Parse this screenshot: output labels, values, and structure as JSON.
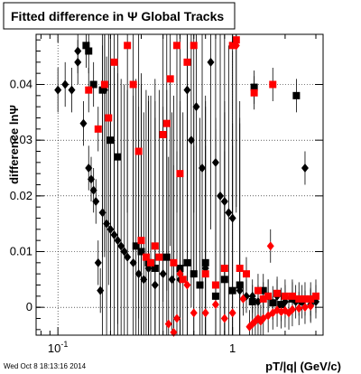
{
  "chart_data": {
    "type": "scatter",
    "title": "Fitted difference in Ψ  Global Tracks",
    "xlabel": "pT/|q| (GeV/c)",
    "ylabel": "difference lnΨ",
    "xscale": "log",
    "xlim": [
      0.075,
      3.3
    ],
    "ylim": [
      -0.005,
      0.049
    ],
    "grid": true,
    "x_ticks": [
      {
        "label": "10",
        "sup": "-1",
        "value": 0.1
      },
      {
        "label": "1",
        "sup": "",
        "value": 1
      }
    ],
    "y_ticks": [
      {
        "label": "0",
        "value": 0
      },
      {
        "label": "0.01",
        "value": 0.01
      },
      {
        "label": "0.02",
        "value": 0.02
      },
      {
        "label": "0.03",
        "value": 0.03
      },
      {
        "label": "0.04",
        "value": 0.04
      }
    ],
    "timestamp": "Wed Oct  8 18:13:16 2014",
    "series": [
      {
        "marker": "diamond",
        "color": "#000000",
        "points": [
          {
            "x": 0.1,
            "y": 0.039
          },
          {
            "x": 0.11,
            "y": 0.04
          },
          {
            "x": 0.12,
            "y": 0.039
          },
          {
            "x": 0.13,
            "y": 0.046
          },
          {
            "x": 0.13,
            "y": 0.044
          },
          {
            "x": 0.14,
            "y": 0.033
          },
          {
            "x": 0.15,
            "y": 0.025
          },
          {
            "x": 0.155,
            "y": 0.023
          },
          {
            "x": 0.16,
            "y": 0.021
          },
          {
            "x": 0.165,
            "y": 0.019
          },
          {
            "x": 0.17,
            "y": 0.008
          },
          {
            "x": 0.175,
            "y": 0.003
          },
          {
            "x": 0.18,
            "y": 0.017
          },
          {
            "x": 0.185,
            "y": 0.039
          },
          {
            "x": 0.19,
            "y": 0.015
          },
          {
            "x": 0.2,
            "y": 0.014
          },
          {
            "x": 0.21,
            "y": 0.013
          },
          {
            "x": 0.22,
            "y": 0.012
          },
          {
            "x": 0.23,
            "y": 0.011
          },
          {
            "x": 0.24,
            "y": 0.01
          },
          {
            "x": 0.25,
            "y": 0.009
          },
          {
            "x": 0.27,
            "y": 0.008
          },
          {
            "x": 0.29,
            "y": 0.006
          },
          {
            "x": 0.31,
            "y": 0.005
          },
          {
            "x": 0.33,
            "y": 0.007
          },
          {
            "x": 0.36,
            "y": 0.004
          },
          {
            "x": 0.4,
            "y": 0.006
          },
          {
            "x": 0.45,
            "y": 0.005
          },
          {
            "x": 0.5,
            "y": 0.005
          },
          {
            "x": 0.55,
            "y": 0.039
          },
          {
            "x": 0.58,
            "y": 0.03
          },
          {
            "x": 0.62,
            "y": 0.036
          },
          {
            "x": 0.67,
            "y": 0.025
          },
          {
            "x": 0.7,
            "y": 0.007
          },
          {
            "x": 0.75,
            "y": 0.044
          },
          {
            "x": 0.8,
            "y": 0.026
          },
          {
            "x": 0.85,
            "y": 0.02
          },
          {
            "x": 0.9,
            "y": 0.019
          },
          {
            "x": 0.95,
            "y": 0.017
          },
          {
            "x": 1.0,
            "y": 0.016
          },
          {
            "x": 1.1,
            "y": 0.003
          },
          {
            "x": 1.2,
            "y": 0.002
          },
          {
            "x": 1.3,
            "y": 0.002
          },
          {
            "x": 1.4,
            "y": 0.001
          },
          {
            "x": 1.6,
            "y": 0.002
          },
          {
            "x": 1.8,
            "y": 0.002
          },
          {
            "x": 2.0,
            "y": 0.001
          },
          {
            "x": 2.3,
            "y": 0.001
          },
          {
            "x": 2.6,
            "y": 0.025
          },
          {
            "x": 2.8,
            "y": 0.0005
          },
          {
            "x": 3.0,
            "y": 0.001
          }
        ]
      },
      {
        "marker": "square",
        "color": "#000000",
        "points": [
          {
            "x": 0.145,
            "y": 0.047
          },
          {
            "x": 0.15,
            "y": 0.046
          },
          {
            "x": 0.16,
            "y": 0.04
          },
          {
            "x": 0.18,
            "y": 0.039
          },
          {
            "x": 0.2,
            "y": 0.03
          },
          {
            "x": 0.22,
            "y": 0.027
          },
          {
            "x": 0.3,
            "y": 0.01
          },
          {
            "x": 0.33,
            "y": 0.008
          },
          {
            "x": 0.36,
            "y": 0.007
          },
          {
            "x": 0.42,
            "y": 0.009
          },
          {
            "x": 0.5,
            "y": 0.007
          },
          {
            "x": 0.55,
            "y": 0.008
          },
          {
            "x": 0.6,
            "y": 0.006
          },
          {
            "x": 0.65,
            "y": 0.004
          },
          {
            "x": 0.7,
            "y": 0.008
          },
          {
            "x": 0.8,
            "y": 0.002
          },
          {
            "x": 0.9,
            "y": 0.005
          },
          {
            "x": 1.0,
            "y": 0.003
          },
          {
            "x": 1.1,
            "y": 0.004
          },
          {
            "x": 1.3,
            "y": 0.001
          },
          {
            "x": 1.5,
            "y": 0.003
          },
          {
            "x": 1.7,
            "y": 0.0008
          },
          {
            "x": 1.9,
            "y": 0.0005
          },
          {
            "x": 2.2,
            "y": 0.0015
          },
          {
            "x": 2.5,
            "y": 0.001
          },
          {
            "x": 1.33,
            "y": 0.0395
          },
          {
            "x": 2.32,
            "y": 0.038
          },
          {
            "x": 0.28,
            "y": 0.011
          }
        ]
      },
      {
        "marker": "square",
        "color": "#ff0000",
        "points": [
          {
            "x": 0.15,
            "y": 0.039
          },
          {
            "x": 0.17,
            "y": 0.032
          },
          {
            "x": 0.185,
            "y": 0.04
          },
          {
            "x": 0.195,
            "y": 0.034
          },
          {
            "x": 0.21,
            "y": 0.044
          },
          {
            "x": 0.25,
            "y": 0.047
          },
          {
            "x": 0.27,
            "y": 0.04
          },
          {
            "x": 0.29,
            "y": 0.028
          },
          {
            "x": 0.3,
            "y": 0.012
          },
          {
            "x": 0.32,
            "y": 0.009
          },
          {
            "x": 0.34,
            "y": 0.008
          },
          {
            "x": 0.36,
            "y": 0.011
          },
          {
            "x": 0.38,
            "y": 0.009
          },
          {
            "x": 0.4,
            "y": 0.031
          },
          {
            "x": 0.42,
            "y": 0.033
          },
          {
            "x": 0.44,
            "y": 0.041
          },
          {
            "x": 0.46,
            "y": 0.008
          },
          {
            "x": 0.48,
            "y": 0.047
          },
          {
            "x": 0.5,
            "y": 0.024
          },
          {
            "x": 0.52,
            "y": 0.005
          },
          {
            "x": 0.55,
            "y": 0.044
          },
          {
            "x": 0.6,
            "y": 0.047
          },
          {
            "x": 0.7,
            "y": 0.006
          },
          {
            "x": 0.8,
            "y": 0.004
          },
          {
            "x": 0.9,
            "y": 0.007
          },
          {
            "x": 1.0,
            "y": 0.047
          },
          {
            "x": 1.1,
            "y": 0.007
          },
          {
            "x": 1.2,
            "y": 0.006
          },
          {
            "x": 1.4,
            "y": 0.003
          },
          {
            "x": 1.5,
            "y": 0.0015
          },
          {
            "x": 1.6,
            "y": 0.002
          },
          {
            "x": 1.8,
            "y": 0.0025
          },
          {
            "x": 2.0,
            "y": 0.002
          },
          {
            "x": 2.2,
            "y": 0.002
          },
          {
            "x": 2.4,
            "y": 0.0015
          },
          {
            "x": 2.6,
            "y": 0.0015
          },
          {
            "x": 2.8,
            "y": 0.0015
          },
          {
            "x": 3.0,
            "y": 0.002
          },
          {
            "x": 1.33,
            "y": 0.0385
          },
          {
            "x": 1.7,
            "y": 0.04
          },
          {
            "x": 1.05,
            "y": 0.048
          }
        ]
      },
      {
        "marker": "diamond",
        "color": "#ff0000",
        "points": [
          {
            "x": 0.43,
            "y": -0.003
          },
          {
            "x": 0.46,
            "y": -0.0045
          },
          {
            "x": 0.48,
            "y": -0.002
          },
          {
            "x": 0.5,
            "y": 0.006
          },
          {
            "x": 0.55,
            "y": 0.004
          },
          {
            "x": 0.6,
            "y": -0.001
          },
          {
            "x": 0.7,
            "y": -0.001
          },
          {
            "x": 0.8,
            "y": 0.0005
          },
          {
            "x": 0.9,
            "y": -0.002
          },
          {
            "x": 1.0,
            "y": -0.001
          },
          {
            "x": 1.25,
            "y": -0.0035
          },
          {
            "x": 1.3,
            "y": -0.003
          },
          {
            "x": 1.35,
            "y": -0.0025
          },
          {
            "x": 1.4,
            "y": -0.002
          },
          {
            "x": 1.45,
            "y": -0.0025
          },
          {
            "x": 1.5,
            "y": -0.002
          },
          {
            "x": 1.6,
            "y": -0.0015
          },
          {
            "x": 1.7,
            "y": -0.001
          },
          {
            "x": 1.8,
            "y": -0.0005
          },
          {
            "x": 1.9,
            "y": -0.0008
          },
          {
            "x": 2.0,
            "y": -0.0006
          },
          {
            "x": 2.2,
            "y": -0.0004
          },
          {
            "x": 2.4,
            "y": -0.0002
          },
          {
            "x": 2.6,
            "y": 0.0
          },
          {
            "x": 2.8,
            "y": 0.0002
          },
          {
            "x": 1.65,
            "y": 0.011
          },
          {
            "x": 1.05,
            "y": 0.047
          },
          {
            "x": 2.1,
            "y": -0.001
          },
          {
            "x": 1.15,
            "y": 0.0015
          }
        ]
      }
    ]
  }
}
